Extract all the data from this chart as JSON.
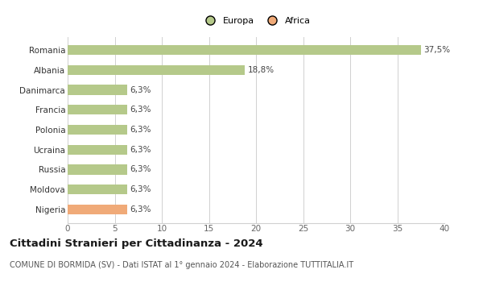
{
  "categories": [
    "Nigeria",
    "Moldova",
    "Russia",
    "Ucraina",
    "Polonia",
    "Francia",
    "Danimarca",
    "Albania",
    "Romania"
  ],
  "values": [
    6.3,
    6.3,
    6.3,
    6.3,
    6.3,
    6.3,
    6.3,
    18.8,
    37.5
  ],
  "labels": [
    "6,3%",
    "6,3%",
    "6,3%",
    "6,3%",
    "6,3%",
    "6,3%",
    "6,3%",
    "18,8%",
    "37,5%"
  ],
  "colors": [
    "#f0aa78",
    "#b5c98a",
    "#b5c98a",
    "#b5c98a",
    "#b5c98a",
    "#b5c98a",
    "#b5c98a",
    "#b5c98a",
    "#b5c98a"
  ],
  "legend": [
    {
      "label": "Europa",
      "color": "#b5c98a"
    },
    {
      "label": "Africa",
      "color": "#f0aa78"
    }
  ],
  "xlim": [
    0,
    40
  ],
  "xticks": [
    0,
    5,
    10,
    15,
    20,
    25,
    30,
    35,
    40
  ],
  "title": "Cittadini Stranieri per Cittadinanza - 2024",
  "subtitle": "COMUNE DI BORMIDA (SV) - Dati ISTAT al 1° gennaio 2024 - Elaborazione TUTTITALIA.IT",
  "bg_color": "#ffffff",
  "grid_color": "#d0d0d0",
  "bar_height": 0.5,
  "label_fontsize": 7.5,
  "title_fontsize": 9.5,
  "subtitle_fontsize": 7.0,
  "tick_fontsize": 7.5,
  "ytick_fontsize": 7.5
}
